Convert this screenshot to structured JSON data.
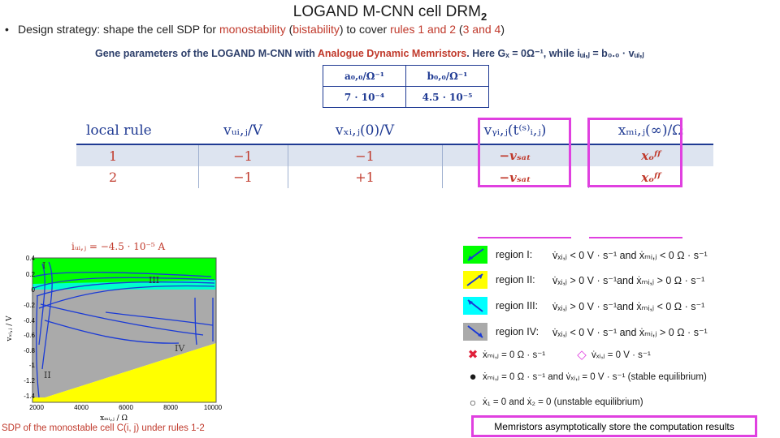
{
  "title": {
    "main": "LOGAND M-CNN cell DRM",
    "sub": "2"
  },
  "strategy": {
    "bullet": "•",
    "prefix": "Design strategy: shape the cell SDP for ",
    "monostability": "monostability",
    "middle1": " (",
    "bistability": "bistability",
    "middle2": ") to cover ",
    "rules12": "rules 1 and 2",
    "middle3": " (",
    "rules34": "3 and 4",
    "suffix": ")"
  },
  "gene_caption": {
    "prefix": "Gene parameters of the LOGAND M-CNN with ",
    "highlight": "Analogue Dynamic Memristors",
    "suffix": ". Here Gₓ = 0Ω⁻¹, while iᵤᵢ,ⱼ = b₀.₀ · vᵤᵢ,ⱼ"
  },
  "param_table": {
    "headers": [
      "a₀,₀/Ω⁻¹",
      "b₀,₀/Ω⁻¹"
    ],
    "values": [
      "7 · 10⁻⁴",
      "4.5 · 10⁻⁵"
    ]
  },
  "rule_table": {
    "headers": [
      "local rule",
      "vᵤᵢ,ⱼ/V",
      "vₓᵢ,ⱼ(0)/V",
      "vᵧᵢ,ⱼ(t⁽ˢ⁾ᵢ,ⱼ)",
      "xₘᵢ,ⱼ(∞)/Ω"
    ],
    "rows": [
      [
        "1",
        "−1",
        "−1",
        "−vₛₐₜ",
        "xₒᶠᶠ"
      ],
      [
        "2",
        "−1",
        "+1",
        "−vₛₐₜ",
        "xₒᶠᶠ"
      ]
    ]
  },
  "plot": {
    "title": "iᵤᵢ,ⱼ = −4.5 · 10⁻⁵ A",
    "xlabel": "xₘᵢ,ⱼ / Ω",
    "ylabel": "vₓᵢ,ⱼ / V",
    "xticks": [
      "2000",
      "4000",
      "6000",
      "8000",
      "10000"
    ],
    "yticks": [
      "0.4",
      "0.2",
      "0",
      "-0.2",
      "-0.4",
      "-0.6",
      "-0.8",
      "-1",
      "-1.2",
      "-1.4"
    ],
    "region_labels": [
      "I",
      "III",
      "IV",
      "II"
    ],
    "colors": {
      "region1": "#00ff00",
      "region2": "#ffff00",
      "region3": "#00ffff",
      "region4": "#aaaaaa",
      "trajectory": "#1a3ad6"
    },
    "caption": "SDP of the monostable cell C(i, j) under rules 1-2"
  },
  "legend": {
    "regions": [
      {
        "label": "region I:",
        "cond": "v̇ₓᵢ,ⱼ < 0 V · s⁻¹ and ẋₘᵢ,ⱼ < 0 Ω · s⁻¹",
        "color": "#00ff00"
      },
      {
        "label": "region II:",
        "cond": "v̇ₓᵢ,ⱼ > 0 V · s⁻¹and ẋₘᵢ,ⱼ > 0 Ω · s⁻¹",
        "color": "#ffff00"
      },
      {
        "label": "region III:",
        "cond": "v̇ₓᵢ,ⱼ > 0 V · s⁻¹and ẋₘᵢ,ⱼ < 0 Ω · s⁻¹",
        "color": "#00ffff"
      },
      {
        "label": "region IV:",
        "cond": "v̇ₓᵢ,ⱼ < 0 V · s⁻¹ and ẋₘᵢ,ⱼ > 0 Ω · s⁻¹",
        "color": "#aaaaaa"
      }
    ],
    "nullclines": {
      "x_null": "ẋₘᵢ,ⱼ = 0 Ω · s⁻¹",
      "v_null": "v̇ₓᵢ,ⱼ = 0 V · s⁻¹"
    },
    "stable": "ẋₘᵢ,ⱼ = 0 Ω · s⁻¹ and v̇ₓᵢ,ⱼ = 0 V · s⁻¹  (stable equilibrium)",
    "unstable": "ẋ₁ = 0 and ẋ₂ = 0 (unstable equilibrium)"
  },
  "conclusion": "Memristors asymptotically store the computation results"
}
